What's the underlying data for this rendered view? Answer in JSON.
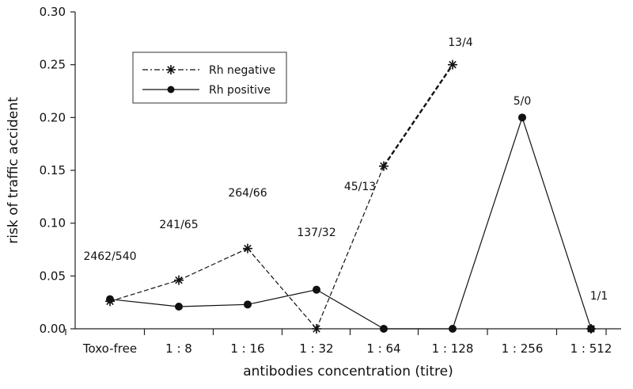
{
  "chart_data": {
    "type": "line",
    "title": "",
    "xlabel": "antibodies concentration (titre)",
    "ylabel": "risk of traffic accident",
    "categories": [
      "Toxo-free",
      "1 : 8",
      "1 : 16",
      "1 : 32",
      "1 : 64",
      "1 : 128",
      "1 : 256",
      "1 : 512"
    ],
    "ylim": [
      0,
      0.3
    ],
    "yticks": [
      "0.00",
      "0.05",
      "0.10",
      "0.15",
      "0.20",
      "0.25",
      "0.30"
    ],
    "grid": false,
    "legend_position": "top-left",
    "series": [
      {
        "name": "Rh negative",
        "marker": "star",
        "line_style": "dashed",
        "values": [
          0.026,
          0.046,
          0.076,
          0.0,
          0.154,
          0.25,
          null,
          0.0
        ]
      },
      {
        "name": "Rh positive",
        "marker": "circle",
        "line_style": "solid",
        "values": [
          0.028,
          0.021,
          0.023,
          0.037,
          0.0,
          0.0,
          0.2,
          0.0
        ]
      }
    ],
    "annotations": [
      "2462/540",
      "241/65",
      "264/66",
      "137/32",
      "45/13",
      "13/4",
      "5/0",
      "1/1"
    ]
  }
}
